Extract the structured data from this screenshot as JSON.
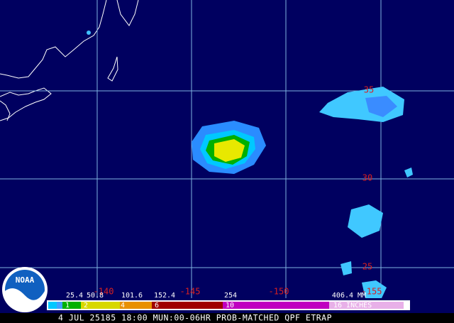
{
  "map": {
    "lat_labels": [
      "35",
      "30",
      "25"
    ],
    "lon_labels": [
      "-140",
      "-145",
      "-150",
      "-155"
    ]
  },
  "legend": {
    "mm_labels": [
      "25.4",
      "50.8",
      "101.6",
      "152.4",
      "254",
      "406.4 MM"
    ],
    "inch_labels": [
      "1",
      "2",
      "4",
      "6",
      "10",
      "16 INCHES"
    ]
  },
  "footer": {
    "caption": "4 JUL 25185 18:00 MUN:00-06HR PROB-MATCHED QPF ETRAP"
  },
  "logo": {
    "text": "NOAA"
  }
}
